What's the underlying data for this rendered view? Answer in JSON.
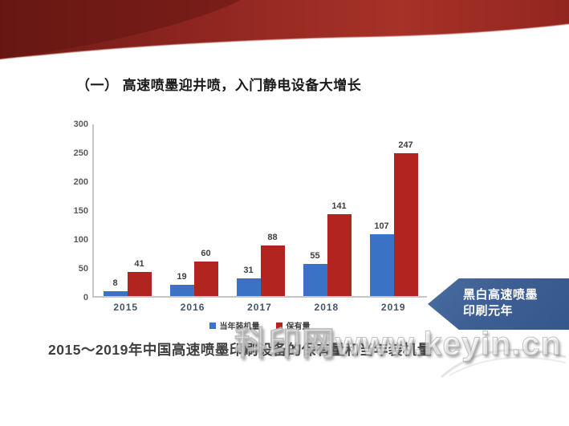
{
  "slide": {
    "title": "（一） 高速喷墨迎井喷，入门静电设备大增长",
    "caption": "2015～2019年中国高速喷墨印刷设备的保有量和当年装机量",
    "watermark": "科印网www.keyin.cn",
    "banner": {
      "line1": "黑白高速喷墨",
      "line2": "印刷元年",
      "color": "#3d5f94"
    },
    "decor_colors": {
      "top_band_dark": "#5f1410",
      "top_band_main": "#9e2b23",
      "top_band_edge": "#d89a94"
    }
  },
  "chart_data": {
    "type": "bar",
    "title": "",
    "xlabel": "",
    "ylabel": "",
    "categories": [
      "2015",
      "2016",
      "2017",
      "2018",
      "2019"
    ],
    "series": [
      {
        "name": "当年装机量",
        "color": "#3a72c5",
        "values": [
          8,
          19,
          31,
          55,
          107
        ]
      },
      {
        "name": "保有量",
        "color": "#b2241f",
        "values": [
          41,
          60,
          88,
          141,
          247
        ]
      }
    ],
    "ylim": [
      0,
      300
    ],
    "yticks": [
      0,
      50,
      100,
      150,
      200,
      250,
      300
    ],
    "grid": false,
    "legend_position": "bottom"
  }
}
